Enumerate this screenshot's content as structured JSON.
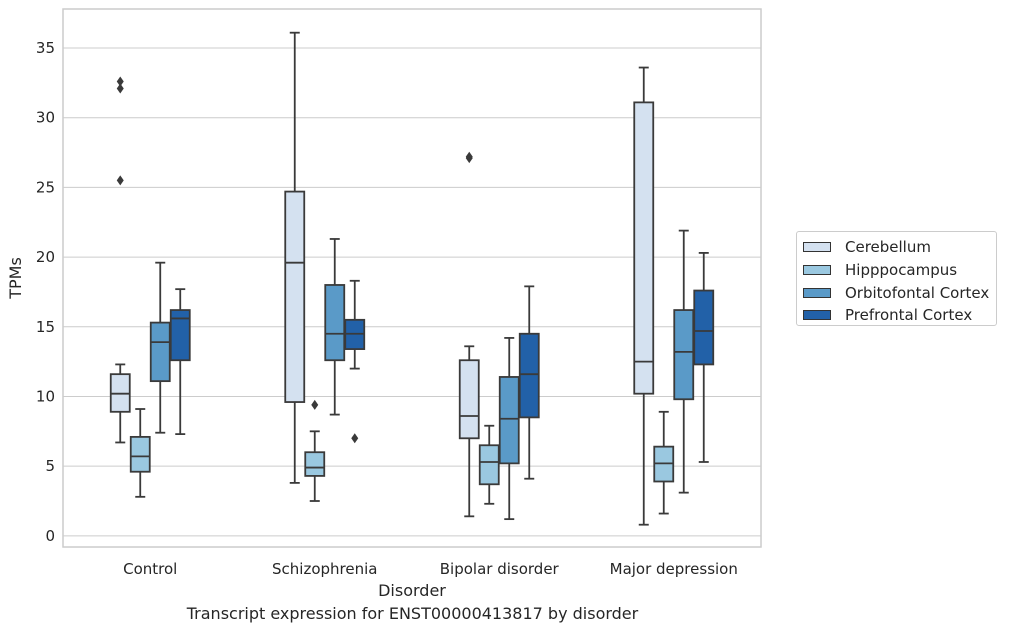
{
  "caption": "Transcript expression for ENST00000413817 by disorder",
  "chart_data": {
    "type": "box",
    "title": "",
    "xlabel": "Disorder",
    "ylabel": "TPMs",
    "ylim": [
      -0.8,
      37.8
    ],
    "yticks": [
      "0",
      "5",
      "10",
      "15",
      "20",
      "25",
      "30",
      "35"
    ],
    "grid": "horizontal",
    "legend_position": "right",
    "categories": [
      "Control",
      "Schizophrenia",
      "Bipolar disorder",
      "Major depression"
    ],
    "series": [
      {
        "name": "Cerebellum",
        "color": "#d4e1f0",
        "boxes": [
          {
            "whislo": 6.7,
            "q1": 8.9,
            "med": 10.2,
            "q3": 11.6,
            "whishi": 12.3,
            "fliers": [
              25.5,
              32.1,
              32.6
            ]
          },
          {
            "whislo": 3.8,
            "q1": 9.6,
            "med": 19.6,
            "q3": 24.7,
            "whishi": 36.1,
            "fliers": []
          },
          {
            "whislo": 1.4,
            "q1": 7.0,
            "med": 8.6,
            "q3": 12.6,
            "whishi": 13.6,
            "fliers": [
              27.1,
              27.2
            ]
          },
          {
            "whislo": 0.8,
            "q1": 10.2,
            "med": 12.5,
            "q3": 31.1,
            "whishi": 33.6,
            "fliers": []
          }
        ]
      },
      {
        "name": "Hipppocampus",
        "color": "#9ac8e0",
        "boxes": [
          {
            "whislo": 2.8,
            "q1": 4.6,
            "med": 5.7,
            "q3": 7.1,
            "whishi": 9.1,
            "fliers": []
          },
          {
            "whislo": 2.5,
            "q1": 4.3,
            "med": 4.9,
            "q3": 6.0,
            "whishi": 7.5,
            "fliers": [
              9.4
            ]
          },
          {
            "whislo": 2.3,
            "q1": 3.7,
            "med": 5.3,
            "q3": 6.5,
            "whishi": 7.9,
            "fliers": []
          },
          {
            "whislo": 1.6,
            "q1": 3.9,
            "med": 5.2,
            "q3": 6.4,
            "whishi": 8.9,
            "fliers": []
          }
        ]
      },
      {
        "name": "Orbitofontal Cortex",
        "color": "#5a9ac8",
        "boxes": [
          {
            "whislo": 7.4,
            "q1": 11.1,
            "med": 13.9,
            "q3": 15.3,
            "whishi": 19.6,
            "fliers": []
          },
          {
            "whislo": 8.7,
            "q1": 12.6,
            "med": 14.5,
            "q3": 18.0,
            "whishi": 21.3,
            "fliers": []
          },
          {
            "whislo": 1.2,
            "q1": 5.2,
            "med": 8.4,
            "q3": 11.4,
            "whishi": 14.2,
            "fliers": []
          },
          {
            "whislo": 3.1,
            "q1": 9.8,
            "med": 13.2,
            "q3": 16.2,
            "whishi": 21.9,
            "fliers": []
          }
        ]
      },
      {
        "name": "Prefrontal Cortex",
        "color": "#2261a8",
        "boxes": [
          {
            "whislo": 7.3,
            "q1": 12.6,
            "med": 15.6,
            "q3": 16.2,
            "whishi": 17.7,
            "fliers": []
          },
          {
            "whislo": 12.0,
            "q1": 13.4,
            "med": 14.5,
            "q3": 15.5,
            "whishi": 18.3,
            "fliers": [
              7.0
            ]
          },
          {
            "whislo": 4.1,
            "q1": 8.5,
            "med": 11.6,
            "q3": 14.5,
            "whishi": 17.9,
            "fliers": []
          },
          {
            "whislo": 5.3,
            "q1": 12.3,
            "med": 14.7,
            "q3": 17.6,
            "whishi": 20.3,
            "fliers": []
          }
        ]
      }
    ]
  }
}
